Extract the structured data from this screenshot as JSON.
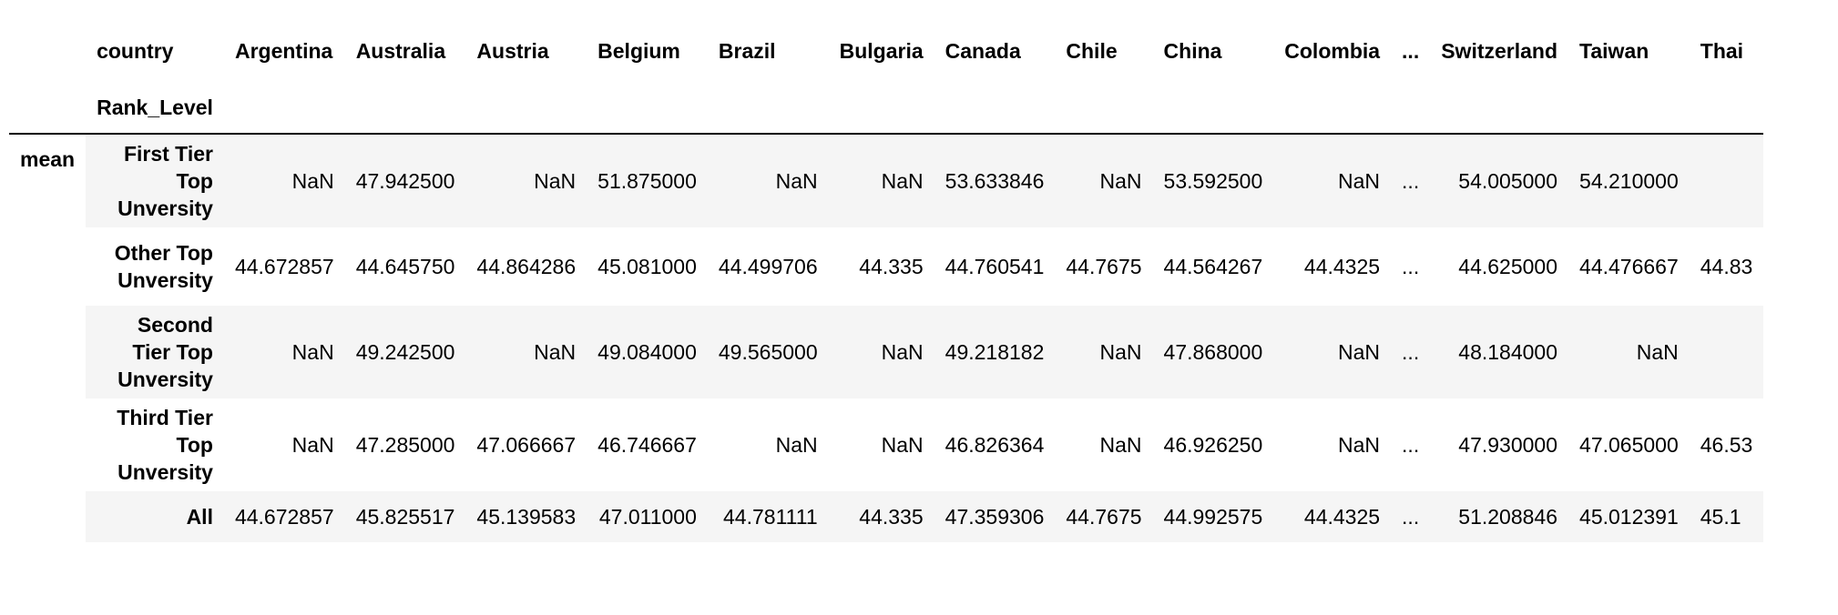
{
  "header": {
    "columns_label": "country",
    "index_label": "Rank_Level",
    "ellipsis": "...",
    "countries_left": [
      "Argentina",
      "Australia",
      "Austria",
      "Belgium",
      "Brazil",
      "Bulgaria",
      "Canada",
      "Chile",
      "China",
      "Colombia"
    ],
    "countries_right": [
      "Switzerland",
      "Taiwan",
      "Thai"
    ]
  },
  "index_outer": "mean",
  "rows": [
    {
      "label": "First Tier Top Unversity",
      "left": [
        "NaN",
        "47.942500",
        "NaN",
        "51.875000",
        "NaN",
        "NaN",
        "53.633846",
        "NaN",
        "53.592500",
        "NaN"
      ],
      "right": [
        "54.005000",
        "54.210000",
        ""
      ]
    },
    {
      "label": "Other Top Unversity",
      "left": [
        "44.672857",
        "44.645750",
        "44.864286",
        "45.081000",
        "44.499706",
        "44.335",
        "44.760541",
        "44.7675",
        "44.564267",
        "44.4325"
      ],
      "right": [
        "44.625000",
        "44.476667",
        "44.83"
      ]
    },
    {
      "label": "Second Tier Top Unversity",
      "left": [
        "NaN",
        "49.242500",
        "NaN",
        "49.084000",
        "49.565000",
        "NaN",
        "49.218182",
        "NaN",
        "47.868000",
        "NaN"
      ],
      "right": [
        "48.184000",
        "NaN",
        ""
      ]
    },
    {
      "label": "Third Tier Top Unversity",
      "left": [
        "NaN",
        "47.285000",
        "47.066667",
        "46.746667",
        "NaN",
        "NaN",
        "46.826364",
        "NaN",
        "46.926250",
        "NaN"
      ],
      "right": [
        "47.930000",
        "47.065000",
        "46.53"
      ]
    },
    {
      "label": "All",
      "left": [
        "44.672857",
        "45.825517",
        "45.139583",
        "47.011000",
        "44.781111",
        "44.335",
        "47.359306",
        "44.7675",
        "44.992575",
        "44.4325"
      ],
      "right": [
        "51.208846",
        "45.012391",
        "45.1"
      ]
    }
  ]
}
